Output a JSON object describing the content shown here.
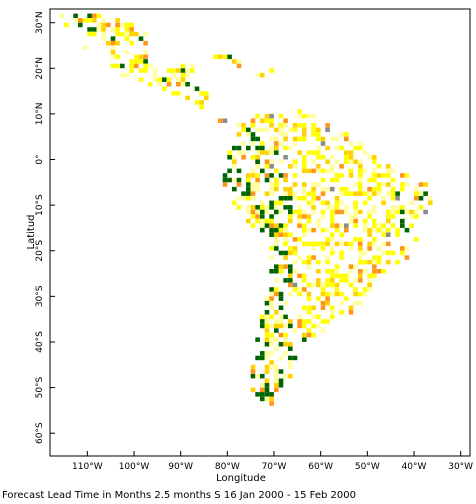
{
  "colors": {
    "yellow": "#ffff00",
    "pale_yellow": "#ffffa0",
    "gold": "#ffd200",
    "orange": "#ff9619",
    "green": "#006400",
    "gray": "#8c8c8c"
  },
  "x_axis": {
    "label": "Longitude",
    "ticks": [
      {
        "value": -110,
        "label": "110°W"
      },
      {
        "value": -100,
        "label": "100°W"
      },
      {
        "value": -90,
        "label": "90°W"
      },
      {
        "value": -80,
        "label": "80°W"
      },
      {
        "value": -70,
        "label": "70°W"
      },
      {
        "value": -60,
        "label": "60°W"
      },
      {
        "value": -50,
        "label": "50°W"
      },
      {
        "value": -40,
        "label": "40°W"
      },
      {
        "value": -30,
        "label": "30°W"
      }
    ],
    "range": [
      -118,
      -28
    ]
  },
  "y_axis": {
    "label": "Latitud",
    "ticks": [
      {
        "value": 30,
        "label": "30°N"
      },
      {
        "value": 20,
        "label": "20°N"
      },
      {
        "value": 10,
        "label": "10°N"
      },
      {
        "value": 0,
        "label": "0°"
      },
      {
        "value": -10,
        "label": "10°S"
      },
      {
        "value": -20,
        "label": "20°S"
      },
      {
        "value": -30,
        "label": "30°S"
      },
      {
        "value": -40,
        "label": "40°S"
      },
      {
        "value": -50,
        "label": "50°S"
      },
      {
        "value": -60,
        "label": "60°S"
      }
    ],
    "range": [
      -65,
      33
    ]
  },
  "caption": "Forecast Lead Time in Months 2.5 months S 16 Jan 2000 - 15 Feb 2000"
}
